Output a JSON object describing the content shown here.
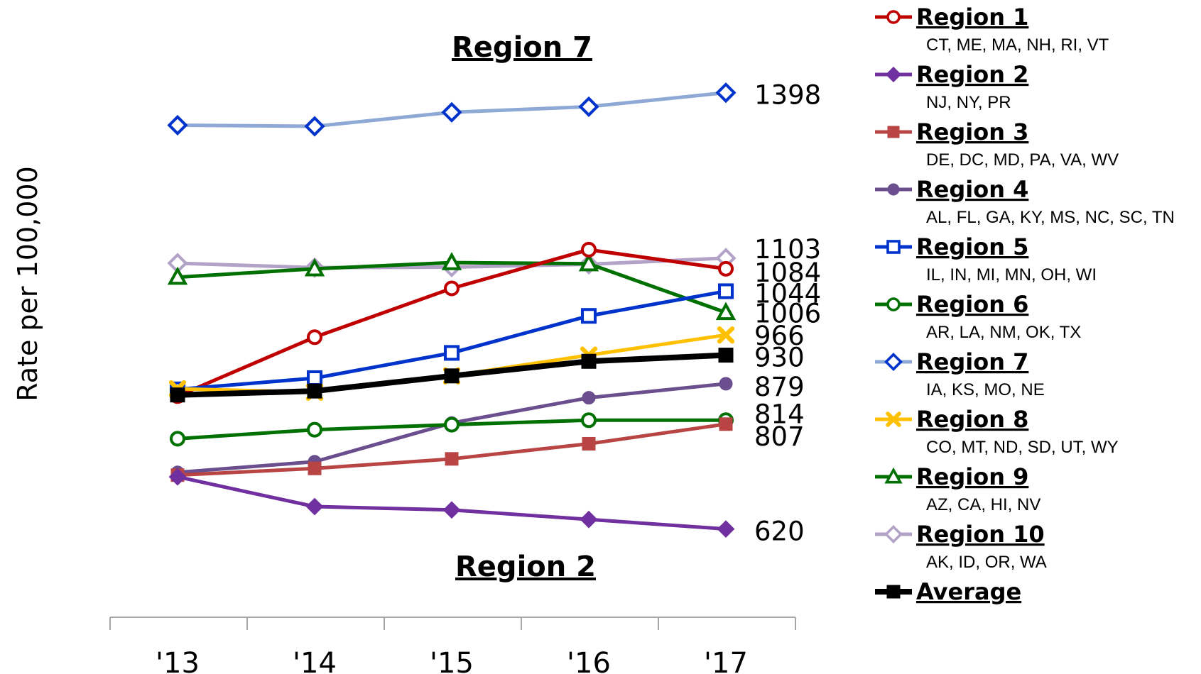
{
  "chart_data": {
    "type": "line",
    "ylabel": "Rate per 100,000",
    "xlabel": "",
    "x": [
      "'13",
      "'14",
      "'15",
      "'16",
      "'17"
    ],
    "ylim": [
      450,
      1500
    ],
    "grid": false,
    "legend_position": "right",
    "annotations": [
      {
        "text": "Region 7",
        "near": "top"
      },
      {
        "text": "Region 2",
        "near": "bottom"
      }
    ],
    "series": [
      {
        "name": "Region 1",
        "states": "CT, ME, MA, NH, RI, VT",
        "color": "#c00000",
        "marker": "circle-open",
        "values": [
          857,
          962,
          1049,
          1118,
          1084
        ],
        "end_label": "1084"
      },
      {
        "name": "Region 2",
        "states": "NJ, NY, PR",
        "color": "#7030a0",
        "marker": "diamond-filled",
        "values": [
          713,
          660,
          654,
          637,
          620
        ],
        "end_label": "620"
      },
      {
        "name": "Region 3",
        "states": "DE, DC, MD, PA, VA, WV",
        "color": "#b84444",
        "marker": "square-filled",
        "values": [
          716,
          728,
          745,
          772,
          807
        ],
        "end_label": "807"
      },
      {
        "name": "Region 4",
        "states": "AL, FL, GA, KY, MS, NC, SC, TN",
        "color": "#6b4e8e",
        "marker": "circle-filled",
        "values": [
          721,
          740,
          809,
          854,
          879
        ],
        "end_label": "879"
      },
      {
        "name": "Region 5",
        "states": "IL, IN, MI, MN, OH, WI",
        "color": "#0033cc",
        "marker": "square-open",
        "values": [
          869,
          889,
          934,
          1000,
          1044
        ],
        "end_label": "1044"
      },
      {
        "name": "Region 6",
        "states": "AR, LA, NM, OK, TX",
        "color": "#007000",
        "marker": "circle-open",
        "values": [
          781,
          797,
          806,
          814,
          814
        ],
        "end_label": "814"
      },
      {
        "name": "Region 7",
        "states": "IA, KS, MO, NE",
        "color": "#0033cc",
        "line_color": "#8fa9d6",
        "marker": "diamond-open",
        "values": [
          1340,
          1338,
          1363,
          1373,
          1398
        ],
        "end_label": "1398"
      },
      {
        "name": "Region 8",
        "states": "CO, MT, ND, SD, UT, WY",
        "color": "#ffc000",
        "marker": "x-filled",
        "values": [
          870,
          864,
          893,
          930,
          966
        ],
        "end_label": "966"
      },
      {
        "name": "Region 9",
        "states": "AZ, CA, HI, NV",
        "color": "#007000",
        "marker": "triangle-open",
        "values": [
          1069,
          1084,
          1095,
          1093,
          1006
        ],
        "end_label": "1006"
      },
      {
        "name": "Region 10",
        "states": "AK, ID, OR, WA",
        "color": "#b3a2c7",
        "marker": "diamond-open",
        "values": [
          1094,
          1086,
          1087,
          1092,
          1103
        ],
        "end_label": "1103"
      },
      {
        "name": "Average",
        "states": "",
        "color": "#000000",
        "marker": "square-filled",
        "values": [
          859,
          866,
          893,
          919,
          930
        ],
        "end_label": "930"
      }
    ]
  }
}
